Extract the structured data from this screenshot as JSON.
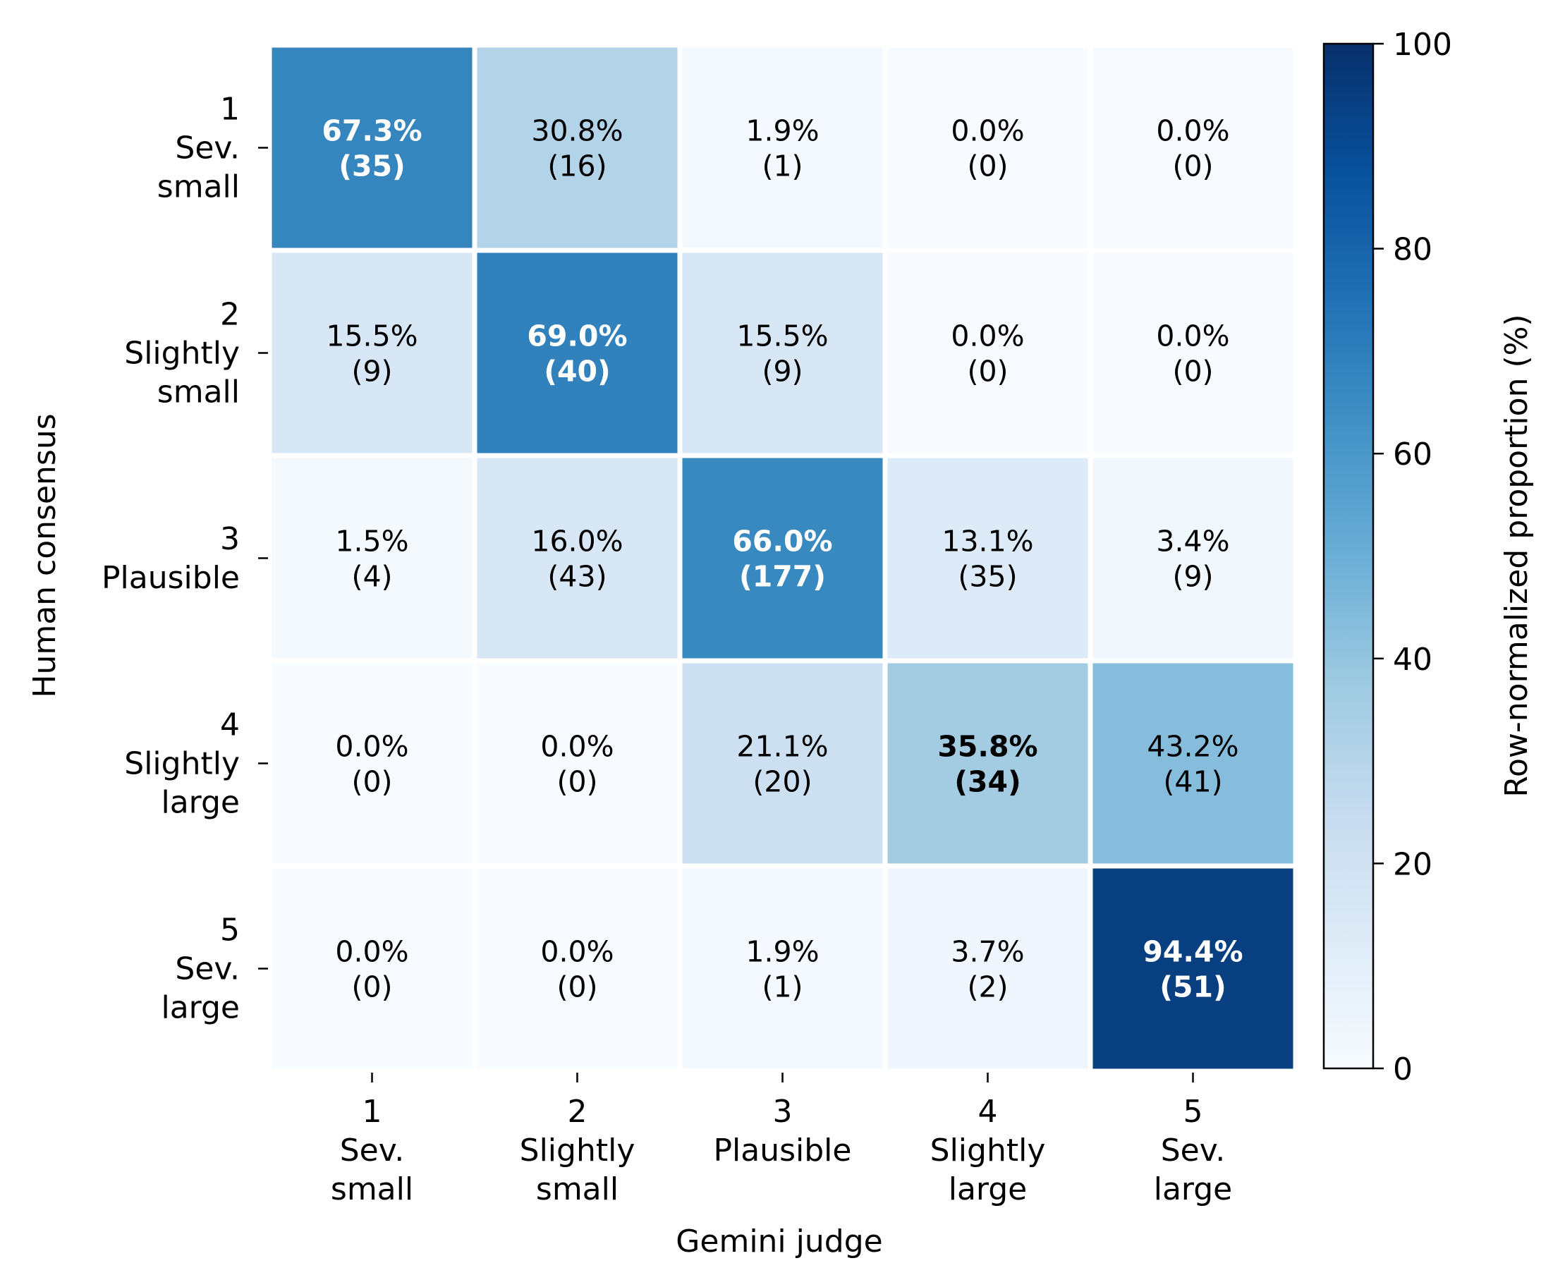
{
  "chart_data": {
    "type": "heatmap",
    "title": "",
    "xlabel": "Gemini judge",
    "ylabel": "Human consensus",
    "x_categories": [
      [
        "1",
        "Sev.",
        "small"
      ],
      [
        "2",
        "Slightly",
        "small"
      ],
      [
        "3",
        "Plausible"
      ],
      [
        "4",
        "Slightly",
        "large"
      ],
      [
        "5",
        "Sev.",
        "large"
      ]
    ],
    "y_categories": [
      [
        "1",
        "Sev.",
        "small"
      ],
      [
        "2",
        "Slightly",
        "small"
      ],
      [
        "3",
        "Plausible"
      ],
      [
        "4",
        "Slightly",
        "large"
      ],
      [
        "5",
        "Sev.",
        "large"
      ]
    ],
    "percent_labels": [
      [
        "67.3%",
        "30.8%",
        "1.9%",
        "0.0%",
        "0.0%"
      ],
      [
        "15.5%",
        "69.0%",
        "15.5%",
        "0.0%",
        "0.0%"
      ],
      [
        "1.5%",
        "16.0%",
        "66.0%",
        "13.1%",
        "3.4%"
      ],
      [
        "0.0%",
        "0.0%",
        "21.1%",
        "35.8%",
        "43.2%"
      ],
      [
        "0.0%",
        "0.0%",
        "1.9%",
        "3.7%",
        "94.4%"
      ]
    ],
    "count_labels": [
      [
        "(35)",
        "(16)",
        "(1)",
        "(0)",
        "(0)"
      ],
      [
        "(9)",
        "(40)",
        "(9)",
        "(0)",
        "(0)"
      ],
      [
        "(4)",
        "(43)",
        "(177)",
        "(35)",
        "(9)"
      ],
      [
        "(0)",
        "(0)",
        "(20)",
        "(34)",
        "(41)"
      ],
      [
        "(0)",
        "(0)",
        "(1)",
        "(2)",
        "(51)"
      ]
    ],
    "values": [
      [
        67.3,
        30.8,
        1.9,
        0.0,
        0.0
      ],
      [
        15.5,
        69.0,
        15.5,
        0.0,
        0.0
      ],
      [
        1.5,
        16.0,
        66.0,
        13.1,
        3.4
      ],
      [
        0.0,
        0.0,
        21.1,
        35.8,
        43.2
      ],
      [
        0.0,
        0.0,
        1.9,
        3.7,
        94.4
      ]
    ],
    "colorbar": {
      "label": "Row-normalized proportion (%)",
      "range": [
        0,
        100
      ],
      "ticks": [
        "0",
        "20",
        "40",
        "60",
        "80",
        "100"
      ],
      "colormap": "Blues",
      "colors": [
        "#f7fbff",
        "#deebf7",
        "#c6dbef",
        "#9ecae1",
        "#6baed6",
        "#4292c6",
        "#2171b5",
        "#08519c",
        "#08306b"
      ]
    },
    "diagonal_bold": true,
    "grid": false
  }
}
